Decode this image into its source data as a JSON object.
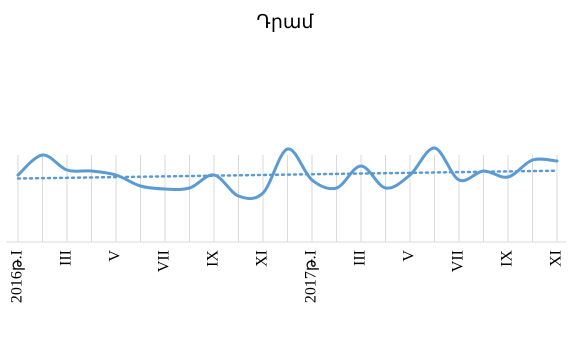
{
  "chart_data": {
    "type": "line",
    "title": "Դրամ",
    "categories": [
      "2016թ.I",
      null,
      "III",
      null,
      "V",
      null,
      "VII",
      null,
      "IX",
      null,
      "XI",
      null,
      "2017թ.I",
      null,
      "III",
      null,
      "V",
      null,
      "VII",
      null,
      "IX",
      null,
      "XI"
    ],
    "series": [
      {
        "color": "#5b9bd5",
        "values": [
          67,
          87,
          72,
          71,
          67,
          56,
          53,
          54,
          67,
          46,
          49,
          93,
          62,
          54,
          76,
          54,
          67,
          94,
          62,
          71,
          65,
          82,
          81
        ]
      }
    ],
    "ylim": [
      0,
      100
    ],
    "trendline": "linear",
    "grid": "vertical"
  }
}
